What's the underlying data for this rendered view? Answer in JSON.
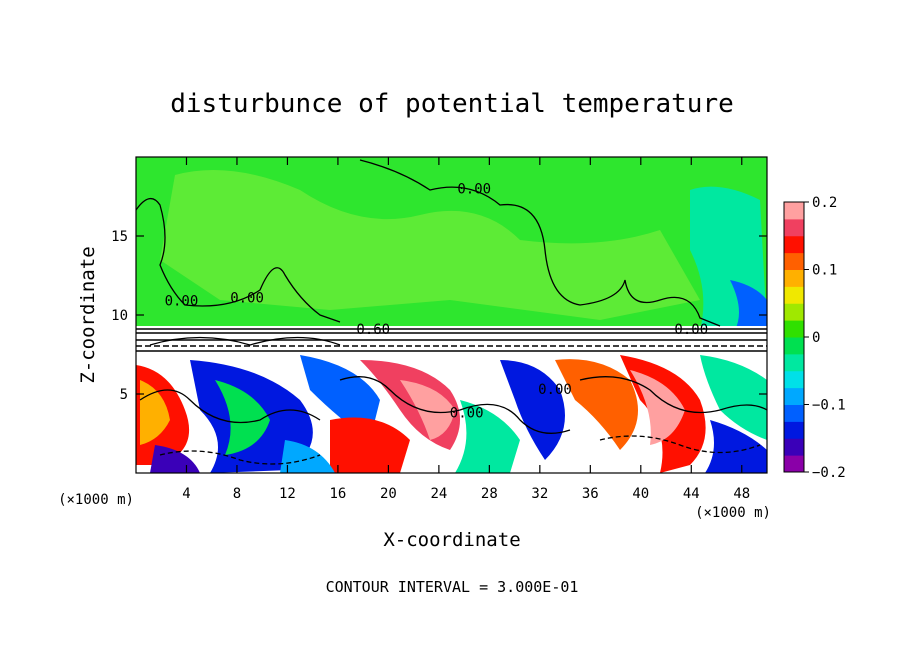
{
  "title": "disturbunce of potential temperature",
  "chart_data": {
    "type": "heatmap",
    "title": "disturbunce of potential temperature",
    "xlabel": "X-coordinate",
    "ylabel": "Z-coordinate",
    "xlim": [
      0,
      50
    ],
    "ylim": [
      0,
      20
    ],
    "x_ticks": [
      4,
      8,
      12,
      16,
      20,
      24,
      28,
      32,
      36,
      40,
      44,
      48
    ],
    "y_ticks": [
      5,
      10,
      15
    ],
    "x_unit": "(×1000 m)",
    "y_unit": "(×1000 m)",
    "colorbar": {
      "range": [
        -0.2,
        0.2
      ],
      "ticks": [
        {
          "value": 0.2,
          "label": "0.2"
        },
        {
          "value": 0.1,
          "label": "0.1"
        },
        {
          "value": 0,
          "label": "0"
        },
        {
          "value": -0.1,
          "label": "−0.1"
        },
        {
          "value": -0.2,
          "label": "−0.2"
        }
      ],
      "colors": [
        "#8a00a8",
        "#3a00b8",
        "#0018e0",
        "#0060ff",
        "#00a8ff",
        "#00e0e8",
        "#00e8a0",
        "#00e050",
        "#30e000",
        "#a0e800",
        "#f0e800",
        "#ffb000",
        "#ff6000",
        "#ff1000",
        "#f04060",
        "#ffa0a0"
      ]
    },
    "contour_labels": [
      {
        "text": "0.00",
        "x": 26.8,
        "y": 17.7
      },
      {
        "text": "0.00",
        "x": 3.6,
        "y": 10.6
      },
      {
        "text": "0.00",
        "x": 8.8,
        "y": 10.8
      },
      {
        "text": "0.00",
        "x": 44.0,
        "y": 8.8
      },
      {
        "text": "0.60",
        "x": 18.8,
        "y": 8.8
      },
      {
        "text": "0.00",
        "x": 26.2,
        "y": 3.5
      },
      {
        "text": "0.00",
        "x": 33.2,
        "y": 5.0
      }
    ],
    "contour_interval": "CONTOUR INTERVAL = 3.000E-01"
  },
  "footer": "CONTOUR INTERVAL = 3.000E-01"
}
